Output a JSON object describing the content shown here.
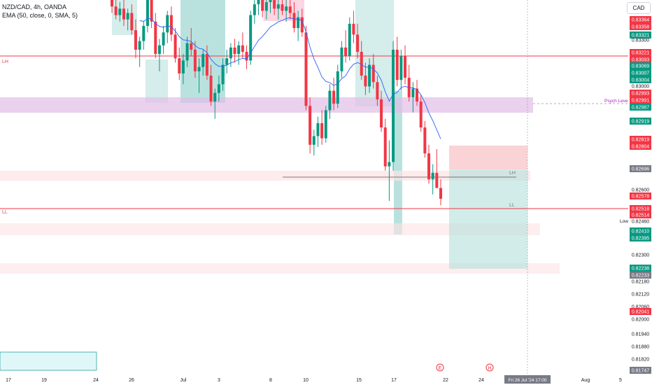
{
  "header": {
    "symbol_line": "NZD/CAD, 4h, OANDA",
    "indicator_line": "EMA (50, close, 0, SMA, 5)",
    "currency": "CAD"
  },
  "chart_data": {
    "type": "candlestick",
    "symbol": "NZD/CAD",
    "interval": "4h",
    "exchange": "OANDA",
    "ylim": [
      0.8172,
      0.8345
    ],
    "x_tick_labels": [
      "17",
      "19",
      "24",
      "26",
      "Jul",
      "3",
      "8",
      "10",
      "15",
      "17",
      "22",
      "24",
      "Aug",
      "5"
    ],
    "crosshair_label": "Fri 26 Jul '24   17:00",
    "price_labels": [
      {
        "value": "0.83364",
        "kind": "red"
      },
      {
        "value": "0.83358",
        "kind": "red"
      },
      {
        "value": "0.83321",
        "kind": "green"
      },
      {
        "value": "0.83300",
        "kind": "axis"
      },
      {
        "value": "0.83221",
        "kind": "red"
      },
      {
        "value": "0.83093",
        "kind": "red"
      },
      {
        "value": "0.83069",
        "kind": "green"
      },
      {
        "value": "0.83007",
        "kind": "green"
      },
      {
        "value": "0.83004",
        "kind": "green"
      },
      {
        "value": "0.83000",
        "kind": "axis"
      },
      {
        "value": "0.82993",
        "kind": "red"
      },
      {
        "value": "0.82991",
        "kind": "red"
      },
      {
        "value": "0.82987",
        "kind": "green"
      },
      {
        "value": "0.82919",
        "kind": "green"
      },
      {
        "value": "0.82819",
        "kind": "red"
      },
      {
        "value": "0.82804",
        "kind": "red"
      },
      {
        "value": "0.82696",
        "kind": "gray"
      },
      {
        "value": "0.82600",
        "kind": "axis"
      },
      {
        "value": "0.82578",
        "kind": "red"
      },
      {
        "value": "0.82518",
        "kind": "red"
      },
      {
        "value": "0.82514",
        "kind": "red"
      },
      {
        "value": "0.82460",
        "kind": "plain"
      },
      {
        "value": "0.82410",
        "kind": "green"
      },
      {
        "value": "0.82395",
        "kind": "green"
      },
      {
        "value": "0.82300",
        "kind": "axis"
      },
      {
        "value": "0.82238",
        "kind": "green"
      },
      {
        "value": "0.82233",
        "kind": "gray"
      },
      {
        "value": "0.82180",
        "kind": "axis"
      },
      {
        "value": "0.82120",
        "kind": "axis"
      },
      {
        "value": "0.82060",
        "kind": "axis"
      },
      {
        "value": "0.82041",
        "kind": "red"
      },
      {
        "value": "0.82000",
        "kind": "axis"
      },
      {
        "value": "0.81940",
        "kind": "axis"
      },
      {
        "value": "0.81880",
        "kind": "axis"
      },
      {
        "value": "0.81820",
        "kind": "axis"
      },
      {
        "value": "0.81747",
        "kind": "gray"
      }
    ],
    "annotations": {
      "lh_left": "LH",
      "ll_left": "LL",
      "psych_level": "Psych Level",
      "lh_right": "LH",
      "ll_right": "LL",
      "low_tag": "Low"
    },
    "event_icons": [
      "earnings-marker",
      "holiday-marker"
    ],
    "ema_color": "#2962ff",
    "up_color": "#089981",
    "down_color": "#f23645",
    "candles": [
      [
        0.8345,
        0.8349,
        0.8339,
        0.8342
      ],
      [
        0.8342,
        0.8346,
        0.8336,
        0.8338
      ],
      [
        0.8338,
        0.8344,
        0.8335,
        0.8341
      ],
      [
        0.8341,
        0.8347,
        0.8333,
        0.8336
      ],
      [
        0.8336,
        0.8341,
        0.8331,
        0.8339
      ],
      [
        0.8339,
        0.8343,
        0.8329,
        0.8331
      ],
      [
        0.8331,
        0.8336,
        0.8318,
        0.8322
      ],
      [
        0.8322,
        0.8328,
        0.8314,
        0.8326
      ],
      [
        0.8326,
        0.8335,
        0.8322,
        0.8333
      ],
      [
        0.8333,
        0.8348,
        0.833,
        0.8345
      ],
      [
        0.8345,
        0.835,
        0.8332,
        0.8335
      ],
      [
        0.8335,
        0.8339,
        0.8318,
        0.832
      ],
      [
        0.832,
        0.8327,
        0.8312,
        0.8324
      ],
      [
        0.8324,
        0.8333,
        0.832,
        0.833
      ],
      [
        0.833,
        0.834,
        0.8325,
        0.8338
      ],
      [
        0.8338,
        0.8342,
        0.8326,
        0.8329
      ],
      [
        0.8329,
        0.8332,
        0.8316,
        0.8318
      ],
      [
        0.8318,
        0.8323,
        0.8308,
        0.8311
      ],
      [
        0.8311,
        0.832,
        0.8306,
        0.8317
      ],
      [
        0.8317,
        0.8328,
        0.8314,
        0.8325
      ],
      [
        0.8325,
        0.8332,
        0.8319,
        0.8322
      ],
      [
        0.8322,
        0.8326,
        0.8309,
        0.8312
      ],
      [
        0.8312,
        0.8318,
        0.8302,
        0.8314
      ],
      [
        0.8314,
        0.8322,
        0.831,
        0.832
      ],
      [
        0.832,
        0.8324,
        0.8308,
        0.831
      ],
      [
        0.831,
        0.8315,
        0.8296,
        0.8298
      ],
      [
        0.8298,
        0.8304,
        0.829,
        0.8302
      ],
      [
        0.8302,
        0.831,
        0.8298,
        0.8306
      ],
      [
        0.8306,
        0.8318,
        0.8303,
        0.8315
      ],
      [
        0.8315,
        0.8322,
        0.8311,
        0.8318
      ],
      [
        0.8318,
        0.8325,
        0.8314,
        0.8323
      ],
      [
        0.8323,
        0.8327,
        0.8316,
        0.832
      ],
      [
        0.832,
        0.8326,
        0.8315,
        0.8324
      ],
      [
        0.8324,
        0.833,
        0.8318,
        0.8321
      ],
      [
        0.8321,
        0.8324,
        0.8313,
        0.8317
      ],
      [
        0.8317,
        0.834,
        0.8315,
        0.8338
      ],
      [
        0.8338,
        0.8346,
        0.8334,
        0.8343
      ],
      [
        0.8343,
        0.835,
        0.8338,
        0.8345
      ],
      [
        0.8345,
        0.8349,
        0.8337,
        0.834
      ],
      [
        0.834,
        0.8346,
        0.8336,
        0.8344
      ],
      [
        0.8344,
        0.835,
        0.8339,
        0.8347
      ],
      [
        0.8347,
        0.835,
        0.8338,
        0.8341
      ],
      [
        0.8341,
        0.8346,
        0.8336,
        0.8343
      ],
      [
        0.8343,
        0.8348,
        0.8338,
        0.834
      ],
      [
        0.834,
        0.8346,
        0.8335,
        0.8342
      ],
      [
        0.8342,
        0.8347,
        0.8336,
        0.8339
      ],
      [
        0.8339,
        0.8344,
        0.833,
        0.8332
      ],
      [
        0.8332,
        0.834,
        0.8326,
        0.8337
      ],
      [
        0.8337,
        0.8341,
        0.8328,
        0.833
      ],
      [
        0.833,
        0.8333,
        0.8294,
        0.8296
      ],
      [
        0.8296,
        0.83,
        0.8274,
        0.8278
      ],
      [
        0.8278,
        0.8285,
        0.8273,
        0.8282
      ],
      [
        0.8282,
        0.8291,
        0.8277,
        0.8288
      ],
      [
        0.8288,
        0.8294,
        0.8278,
        0.8281
      ],
      [
        0.8281,
        0.8296,
        0.8279,
        0.8294
      ],
      [
        0.8294,
        0.8306,
        0.829,
        0.8303
      ],
      [
        0.8303,
        0.8309,
        0.8294,
        0.8297
      ],
      [
        0.8297,
        0.8315,
        0.8295,
        0.8312
      ],
      [
        0.8312,
        0.8326,
        0.8309,
        0.8323
      ],
      [
        0.8323,
        0.8331,
        0.8316,
        0.8319
      ],
      [
        0.8319,
        0.8337,
        0.8317,
        0.8334
      ],
      [
        0.8334,
        0.834,
        0.8325,
        0.8329
      ],
      [
        0.8329,
        0.8334,
        0.8318,
        0.8321
      ],
      [
        0.8321,
        0.8326,
        0.8308,
        0.831
      ],
      [
        0.831,
        0.8316,
        0.8301,
        0.8305
      ],
      [
        0.8305,
        0.8318,
        0.8302,
        0.8315
      ],
      [
        0.8315,
        0.832,
        0.8304,
        0.8307
      ],
      [
        0.8307,
        0.831,
        0.8296,
        0.8299
      ],
      [
        0.8299,
        0.8303,
        0.8284,
        0.8286
      ],
      [
        0.8286,
        0.829,
        0.8266,
        0.8268
      ],
      [
        0.8268,
        0.828,
        0.8252,
        0.827
      ],
      [
        0.827,
        0.8326,
        0.8266,
        0.8322
      ],
      [
        0.8322,
        0.8328,
        0.8305,
        0.8308
      ],
      [
        0.8308,
        0.8322,
        0.8303,
        0.8319
      ],
      [
        0.8319,
        0.8324,
        0.8306,
        0.8309
      ],
      [
        0.8309,
        0.8315,
        0.8298,
        0.83
      ],
      [
        0.83,
        0.8307,
        0.8293,
        0.8304
      ],
      [
        0.8304,
        0.8308,
        0.8296,
        0.8298
      ],
      [
        0.8298,
        0.8301,
        0.8284,
        0.8286
      ],
      [
        0.8286,
        0.8289,
        0.8272,
        0.8274
      ],
      [
        0.8274,
        0.8278,
        0.826,
        0.8262
      ],
      [
        0.8262,
        0.8269,
        0.8255,
        0.8265
      ],
      [
        0.8265,
        0.8276,
        0.8258,
        0.8258
      ],
      [
        0.8258,
        0.8262,
        0.825,
        0.8253
      ]
    ]
  }
}
